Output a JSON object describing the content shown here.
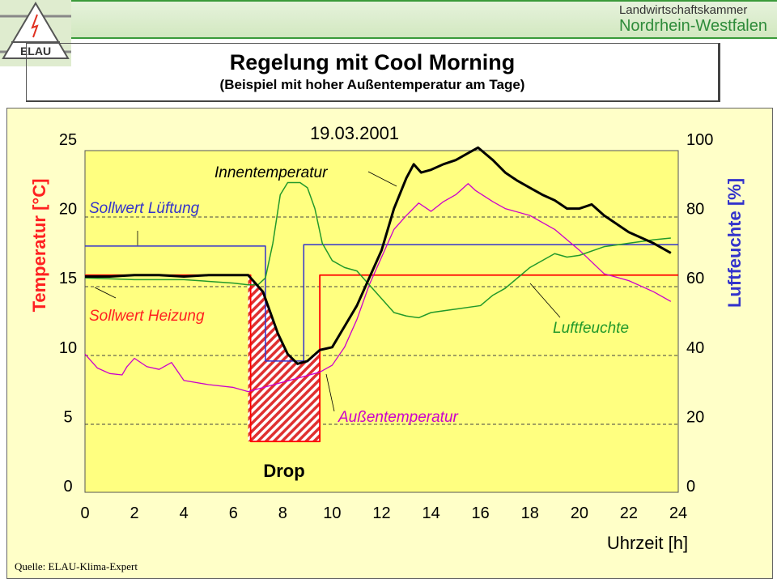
{
  "header": {
    "org_line1": "Landwirtschaftskammer",
    "org_line2": "Nordrhein-Westfalen",
    "logo_text": "ELAU"
  },
  "title": "Regelung mit Cool Morning",
  "subtitle": "(Beispiel mit hoher Außentemperatur am Tage)",
  "source": "Quelle: ELAU-Klima-Expert",
  "colors": {
    "inner": "#000000",
    "outer": "#cc00cc",
    "humidity": "#22992a",
    "vent": "#3333cc",
    "heat": "#ff0000",
    "plot_bg": "#ffff80"
  },
  "chart_data": {
    "type": "line",
    "title": "19.03.2001",
    "xlabel": "Uhrzeit [h]",
    "ylabel": "Temperatur [°C]",
    "y2label": "Luftfeuchte [%]",
    "xlim": [
      0,
      24
    ],
    "ylim": [
      0,
      25
    ],
    "y2lim": [
      0,
      100
    ],
    "xticks": [
      "0",
      "2",
      "4",
      "6",
      "8",
      "10",
      "12",
      "14",
      "16",
      "18",
      "20",
      "22",
      "24"
    ],
    "yticks": [
      "0",
      "5",
      "10",
      "15",
      "20",
      "25"
    ],
    "y2ticks": [
      "0",
      "20",
      "40",
      "60",
      "80",
      "100"
    ],
    "grid": "dashed horizontal",
    "annotation": "Drop",
    "series": [
      {
        "name": "Innentemperatur",
        "axis": "left",
        "x": [
          0,
          1,
          2,
          3,
          4,
          5,
          6,
          6.6,
          7.2,
          7.8,
          8.2,
          8.6,
          9,
          9.5,
          10,
          10.5,
          11,
          11.5,
          12,
          12.5,
          13,
          13.3,
          13.6,
          14,
          14.5,
          15,
          15.5,
          15.9,
          16.5,
          17,
          17.5,
          18,
          18.5,
          19,
          19.5,
          20,
          20.5,
          21,
          22,
          23,
          23.7
        ],
        "y": [
          15.1,
          15.1,
          15.2,
          15.2,
          15.1,
          15.2,
          15.2,
          15.2,
          14,
          11,
          9.5,
          8.8,
          9,
          9.8,
          10,
          11.5,
          13,
          15,
          17,
          20,
          22.2,
          23.2,
          22.6,
          22.8,
          23.2,
          23.5,
          24,
          24.4,
          23.5,
          22.6,
          22,
          21.5,
          21,
          20.6,
          20,
          20,
          20.3,
          19.5,
          18.3,
          17.5,
          16.8
        ]
      },
      {
        "name": "Außentemperatur",
        "axis": "left",
        "x": [
          0,
          0.5,
          1,
          1.5,
          1.7,
          2,
          2.5,
          3,
          3.5,
          4,
          5,
          6,
          6.6,
          9.5,
          10,
          10.5,
          11,
          11.5,
          12,
          12.5,
          13,
          13.5,
          14,
          14.5,
          15,
          15.5,
          15.8,
          16.5,
          17,
          18,
          19,
          20,
          21,
          22,
          23,
          23.7
        ],
        "y": [
          9.5,
          8.5,
          8.1,
          8.0,
          8.6,
          9.2,
          8.6,
          8.4,
          8.9,
          7.6,
          7.3,
          7.1,
          6.8,
          8.2,
          8.7,
          10,
          12,
          14.5,
          16.5,
          18.5,
          19.5,
          20.4,
          19.8,
          20.5,
          21,
          21.8,
          21.3,
          20.5,
          20,
          19.5,
          18.5,
          17,
          15.3,
          14.8,
          14,
          13.3
        ]
      },
      {
        "name": "Luftfeuchte",
        "axis": "right",
        "x": [
          0,
          2,
          4,
          6,
          6.6,
          7,
          7.3,
          7.6,
          7.9,
          8.2,
          8.7,
          9,
          9.3,
          9.6,
          10,
          10.5,
          11,
          11.5,
          12,
          12.5,
          13,
          13.5,
          14,
          15,
          16,
          16.5,
          17,
          18,
          19,
          19.5,
          20,
          21,
          22,
          23,
          23.7
        ],
        "y": [
          60,
          59.5,
          59.5,
          58.5,
          58,
          58,
          60,
          70,
          84,
          87.5,
          87.5,
          86,
          80,
          70,
          65,
          63,
          62,
          58,
          54,
          50,
          49,
          48.5,
          50,
          51,
          52,
          55,
          57,
          63,
          67,
          66,
          66.5,
          69,
          70,
          71,
          71.5
        ]
      },
      {
        "name": "Sollwert Lüftung",
        "axis": "left",
        "x": [
          0,
          7.3,
          7.3,
          8.85,
          8.85,
          24
        ],
        "y": [
          17.3,
          17.3,
          9,
          9,
          17.4,
          17.4
        ]
      },
      {
        "name": "Sollwert Heizung",
        "axis": "left",
        "x": [
          0,
          6.7,
          6.7,
          9.5,
          9.5,
          24
        ],
        "y": [
          15.2,
          15.2,
          3.2,
          3.2,
          15.2,
          15.2
        ]
      }
    ]
  }
}
